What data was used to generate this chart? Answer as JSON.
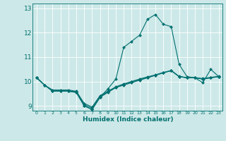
{
  "xlabel": "Humidex (Indice chaleur)",
  "ylabel": "",
  "background_color": "#cde8e8",
  "grid_color": "#ffffff",
  "line_color": "#007070",
  "xlim": [
    -0.5,
    23.5
  ],
  "ylim": [
    8.8,
    13.2
  ],
  "yticks": [
    9,
    10,
    11,
    12,
    13
  ],
  "xticks": [
    0,
    1,
    2,
    3,
    4,
    5,
    6,
    7,
    8,
    9,
    10,
    11,
    12,
    13,
    14,
    15,
    16,
    17,
    18,
    19,
    20,
    21,
    22,
    23
  ],
  "series": [
    {
      "x": [
        0,
        1,
        2,
        3,
        4,
        5,
        6,
        7,
        8,
        9,
        10,
        11,
        12,
        13,
        14,
        15,
        16,
        17,
        18,
        19,
        20,
        21,
        22,
        23
      ],
      "y": [
        10.15,
        9.85,
        9.6,
        9.6,
        9.6,
        9.55,
        9.0,
        8.85,
        9.35,
        9.7,
        10.1,
        11.4,
        11.65,
        11.9,
        12.55,
        12.75,
        12.35,
        12.25,
        10.7,
        10.2,
        10.15,
        9.95,
        10.5,
        10.2
      ]
    },
    {
      "x": [
        0,
        1,
        2,
        3,
        4,
        5,
        6,
        7,
        8,
        9,
        10,
        11,
        12,
        13,
        14,
        15,
        16,
        17,
        18,
        19,
        20,
        21,
        22,
        23
      ],
      "y": [
        10.15,
        9.85,
        9.6,
        9.6,
        9.6,
        9.55,
        9.0,
        8.85,
        9.35,
        9.55,
        9.75,
        9.85,
        9.95,
        10.05,
        10.15,
        10.25,
        10.35,
        10.45,
        10.2,
        10.15,
        10.15,
        10.1,
        10.15,
        10.2
      ]
    },
    {
      "x": [
        0,
        1,
        2,
        3,
        4,
        5,
        6,
        7,
        8,
        9,
        10,
        11,
        12,
        13,
        14,
        15,
        16,
        17,
        18,
        19,
        20,
        21,
        22,
        23
      ],
      "y": [
        10.15,
        9.85,
        9.62,
        9.62,
        9.62,
        9.58,
        9.05,
        8.9,
        9.38,
        9.57,
        9.76,
        9.88,
        9.98,
        10.08,
        10.17,
        10.26,
        10.36,
        10.44,
        10.2,
        10.15,
        10.15,
        10.1,
        10.15,
        10.2
      ]
    },
    {
      "x": [
        0,
        1,
        2,
        3,
        4,
        5,
        6,
        7,
        8,
        9,
        10,
        11,
        12,
        13,
        14,
        15,
        16,
        17,
        18,
        19,
        20,
        21,
        22,
        23
      ],
      "y": [
        10.15,
        9.85,
        9.65,
        9.65,
        9.65,
        9.6,
        9.1,
        8.95,
        9.42,
        9.6,
        9.78,
        9.9,
        10.0,
        10.1,
        10.19,
        10.27,
        10.37,
        10.45,
        10.21,
        10.16,
        10.16,
        10.12,
        10.17,
        10.21
      ]
    }
  ],
  "marker": "D",
  "markersize": 2.0,
  "linewidth": 0.8
}
